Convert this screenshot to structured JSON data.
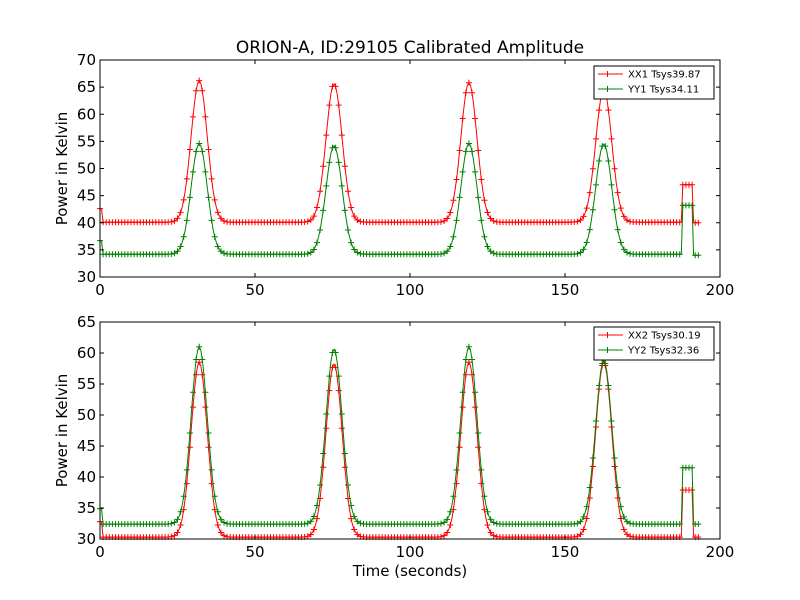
{
  "chart_data": [
    {
      "type": "line",
      "title": "ORION-A, ID:29105 Calibrated Amplitude",
      "xlabel": "",
      "ylabel": "Power in Kelvin",
      "xlim": [
        0,
        200
      ],
      "ylim": [
        30,
        70
      ],
      "xticks": [
        "0",
        "50",
        "100",
        "150",
        "200"
      ],
      "yticks": [
        "30",
        "35",
        "40",
        "45",
        "50",
        "55",
        "60",
        "65",
        "70"
      ],
      "legend_position": "top-right",
      "grid": false,
      "series": [
        {
          "name": "XX1 Tsys39.87",
          "color": "#ff0000",
          "marker": "+",
          "baseline": 40.1,
          "peaks": [
            {
              "x": 32,
              "y": 66.2
            },
            {
              "x": 75.5,
              "y": 65.6
            },
            {
              "x": 119,
              "y": 65.8
            },
            {
              "x": 162.5,
              "y": 64.5
            }
          ],
          "step": {
            "x_start": 188,
            "x_end": 191,
            "y": 47
          },
          "end_value": 40
        },
        {
          "name": "YY1 Tsys34.11",
          "color": "#008000",
          "marker": "+",
          "baseline": 34.2,
          "peaks": [
            {
              "x": 32,
              "y": 54.6
            },
            {
              "x": 75.5,
              "y": 54.2
            },
            {
              "x": 119,
              "y": 54.6
            },
            {
              "x": 162.5,
              "y": 54.5
            }
          ],
          "step": {
            "x_start": 188,
            "x_end": 191,
            "y": 43.2
          },
          "end_value": 34
        }
      ]
    },
    {
      "type": "line",
      "title": "",
      "xlabel": "Time (seconds)",
      "ylabel": "Power in Kelvin",
      "xlim": [
        0,
        200
      ],
      "ylim": [
        30,
        65
      ],
      "xticks": [
        "0",
        "50",
        "100",
        "150",
        "200"
      ],
      "yticks": [
        "30",
        "35",
        "40",
        "45",
        "50",
        "55",
        "60",
        "65"
      ],
      "legend_position": "top-right",
      "grid": false,
      "series": [
        {
          "name": "XX2 Tsys30.19",
          "color": "#ff0000",
          "marker": "+",
          "baseline": 30.3,
          "peaks": [
            {
              "x": 32,
              "y": 58.5
            },
            {
              "x": 75.5,
              "y": 58.2
            },
            {
              "x": 119,
              "y": 58.5
            },
            {
              "x": 162.5,
              "y": 58.5
            }
          ],
          "step": {
            "x_start": 188,
            "x_end": 191,
            "y": 37.9
          },
          "end_value": 30.3
        },
        {
          "name": "YY2 Tsys32.36",
          "color": "#008000",
          "marker": "+",
          "baseline": 32.4,
          "peaks": [
            {
              "x": 32,
              "y": 61
            },
            {
              "x": 75.5,
              "y": 60.6
            },
            {
              "x": 119,
              "y": 61
            },
            {
              "x": 162.5,
              "y": 58.8
            }
          ],
          "step": {
            "x_start": 188,
            "x_end": 191,
            "y": 41.5
          },
          "end_value": 32.4
        }
      ]
    }
  ]
}
